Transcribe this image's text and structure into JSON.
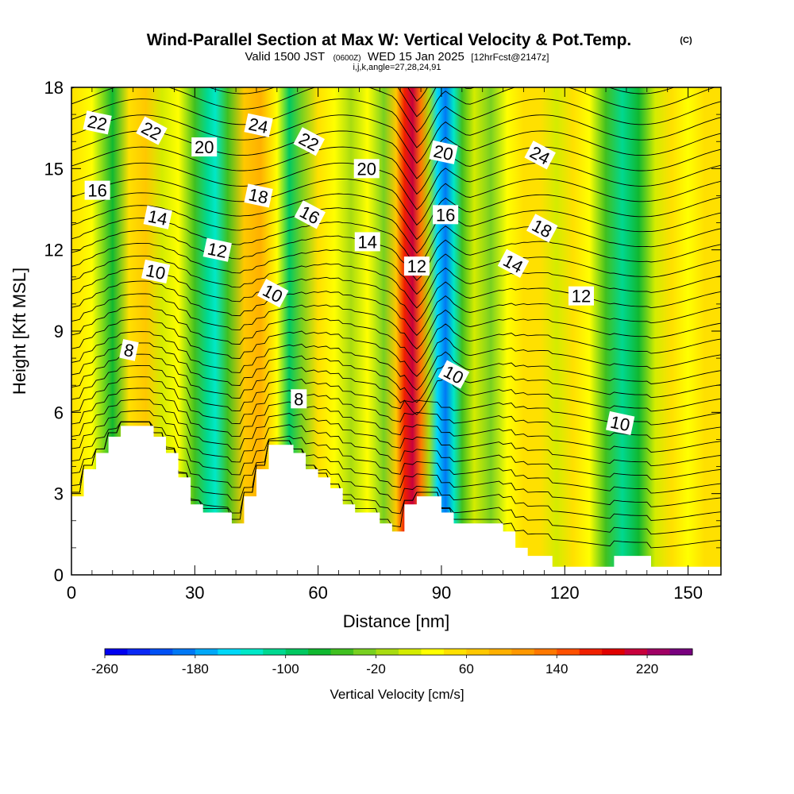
{
  "title": {
    "main": "Wind-Parallel Section at Max W: Vertical Velocity & Pot.Temp.",
    "copyright": "(C)",
    "valid_prefix": "Valid 1500 JST",
    "valid_utc": "(0600Z)",
    "valid_date": "WED 15 Jan 2025",
    "forecast": "[12hrFcst@2147z]",
    "indices": "i,j,k,angle=27,28,24,91"
  },
  "chart_data": {
    "type": "heatmap",
    "xlabel": "Distance [nm]",
    "ylabel": "Height [Kft MSL]",
    "xlim": [
      0,
      158
    ],
    "ylim": [
      0,
      18
    ],
    "x_ticks": [
      0,
      30,
      60,
      90,
      120,
      150
    ],
    "y_ticks": [
      0,
      3,
      6,
      9,
      12,
      15,
      18
    ],
    "colorbar": {
      "label": "Vertical Velocity [cm/s]",
      "min": -260,
      "max": 260,
      "step": 20,
      "tick_labels": [
        "-260",
        "-180",
        "-100",
        "-20",
        "60",
        "140",
        "220"
      ],
      "colors": [
        "#0000f0",
        "#0a28f5",
        "#0050f5",
        "#0078f5",
        "#00a8f8",
        "#00d8f8",
        "#00e8c8",
        "#00d890",
        "#00c860",
        "#10b830",
        "#40c020",
        "#78d020",
        "#a8dc10",
        "#d4ec00",
        "#ffff00",
        "#ffe000",
        "#ffc800",
        "#ffb000",
        "#ff9800",
        "#ff7800",
        "#ff5000",
        "#f02000",
        "#e00000",
        "#c8003c",
        "#a00064",
        "#78007e"
      ]
    },
    "velocity_columns": [
      {
        "x": 0,
        "w": 40
      },
      {
        "x": 5,
        "w": 20
      },
      {
        "x": 10,
        "w": -70
      },
      {
        "x": 14,
        "w": 40
      },
      {
        "x": 18,
        "w": 60
      },
      {
        "x": 22,
        "w": 10
      },
      {
        "x": 26,
        "w": 30
      },
      {
        "x": 30,
        "w": -60
      },
      {
        "x": 33,
        "w": -120
      },
      {
        "x": 35,
        "w": -130
      },
      {
        "x": 38,
        "w": -50
      },
      {
        "x": 42,
        "w": 60
      },
      {
        "x": 46,
        "w": 80
      },
      {
        "x": 50,
        "w": 20
      },
      {
        "x": 53,
        "w": -90
      },
      {
        "x": 56,
        "w": -40
      },
      {
        "x": 60,
        "w": 40
      },
      {
        "x": 64,
        "w": 30
      },
      {
        "x": 68,
        "w": -10
      },
      {
        "x": 72,
        "w": 20
      },
      {
        "x": 76,
        "w": -40
      },
      {
        "x": 79,
        "w": 60
      },
      {
        "x": 81,
        "w": 170
      },
      {
        "x": 83,
        "w": 210
      },
      {
        "x": 85,
        "w": 130
      },
      {
        "x": 87,
        "w": -20
      },
      {
        "x": 89,
        "w": -150
      },
      {
        "x": 91,
        "w": -200
      },
      {
        "x": 93,
        "w": -140
      },
      {
        "x": 95,
        "w": -60
      },
      {
        "x": 98,
        "w": 10
      },
      {
        "x": 102,
        "w": -40
      },
      {
        "x": 106,
        "w": 20
      },
      {
        "x": 110,
        "w": 50
      },
      {
        "x": 114,
        "w": 40
      },
      {
        "x": 118,
        "w": 10
      },
      {
        "x": 122,
        "w": 40
      },
      {
        "x": 126,
        "w": 20
      },
      {
        "x": 130,
        "w": -50
      },
      {
        "x": 134,
        "w": -120
      },
      {
        "x": 138,
        "w": -80
      },
      {
        "x": 142,
        "w": 10
      },
      {
        "x": 146,
        "w": 50
      },
      {
        "x": 150,
        "w": 30
      },
      {
        "x": 154,
        "w": 40
      },
      {
        "x": 158,
        "w": 40
      }
    ],
    "terrain": [
      {
        "x": 0,
        "h": 2.9
      },
      {
        "x": 3,
        "h": 3.9
      },
      {
        "x": 6,
        "h": 4.5
      },
      {
        "x": 9,
        "h": 5.1
      },
      {
        "x": 12,
        "h": 5.5
      },
      {
        "x": 18,
        "h": 5.5
      },
      {
        "x": 20,
        "h": 5.1
      },
      {
        "x": 23,
        "h": 4.5
      },
      {
        "x": 26,
        "h": 3.6
      },
      {
        "x": 29,
        "h": 2.6
      },
      {
        "x": 32,
        "h": 2.3
      },
      {
        "x": 36,
        "h": 2.3
      },
      {
        "x": 39,
        "h": 1.9
      },
      {
        "x": 42,
        "h": 2.9
      },
      {
        "x": 45,
        "h": 3.9
      },
      {
        "x": 48,
        "h": 4.8
      },
      {
        "x": 54,
        "h": 4.5
      },
      {
        "x": 57,
        "h": 3.9
      },
      {
        "x": 60,
        "h": 3.6
      },
      {
        "x": 63,
        "h": 3.2
      },
      {
        "x": 66,
        "h": 2.6
      },
      {
        "x": 69,
        "h": 2.3
      },
      {
        "x": 72,
        "h": 2.3
      },
      {
        "x": 75,
        "h": 1.9
      },
      {
        "x": 78,
        "h": 1.6
      },
      {
        "x": 81,
        "h": 2.6
      },
      {
        "x": 84,
        "h": 2.9
      },
      {
        "x": 87,
        "h": 2.9
      },
      {
        "x": 90,
        "h": 2.3
      },
      {
        "x": 93,
        "h": 1.9
      },
      {
        "x": 102,
        "h": 1.9
      },
      {
        "x": 105,
        "h": 1.6
      },
      {
        "x": 108,
        "h": 1.0
      },
      {
        "x": 111,
        "h": 0.7
      },
      {
        "x": 114,
        "h": 0.7
      },
      {
        "x": 117,
        "h": 0.3
      },
      {
        "x": 132,
        "h": 0.7
      },
      {
        "x": 141,
        "h": 0.3
      },
      {
        "x": 158,
        "h": 0.3
      }
    ],
    "isentrope_labels": [
      {
        "text": "22",
        "x": 6.3,
        "y": 16.7
      },
      {
        "text": "22",
        "x": 19.5,
        "y": 16.4
      },
      {
        "text": "20",
        "x": 32.3,
        "y": 15.8
      },
      {
        "text": "24",
        "x": 45.5,
        "y": 16.6
      },
      {
        "text": "22",
        "x": 57.8,
        "y": 16.0
      },
      {
        "text": "20",
        "x": 71.8,
        "y": 15.0
      },
      {
        "text": "20",
        "x": 90.5,
        "y": 15.6
      },
      {
        "text": "24",
        "x": 114.0,
        "y": 15.5
      },
      {
        "text": "16",
        "x": 6.3,
        "y": 14.2
      },
      {
        "text": "18",
        "x": 45.5,
        "y": 14.0
      },
      {
        "text": "16",
        "x": 58.0,
        "y": 13.3
      },
      {
        "text": "16",
        "x": 91.0,
        "y": 13.3
      },
      {
        "text": "14",
        "x": 21.0,
        "y": 13.2
      },
      {
        "text": "18",
        "x": 114.5,
        "y": 12.8
      },
      {
        "text": "14",
        "x": 72.0,
        "y": 12.3
      },
      {
        "text": "12",
        "x": 35.5,
        "y": 12.0
      },
      {
        "text": "14",
        "x": 107.5,
        "y": 11.5
      },
      {
        "text": "12",
        "x": 84.0,
        "y": 11.4
      },
      {
        "text": "10",
        "x": 20.5,
        "y": 11.2
      },
      {
        "text": "10",
        "x": 49.0,
        "y": 10.4
      },
      {
        "text": "12",
        "x": 124.0,
        "y": 10.3
      },
      {
        "text": "8",
        "x": 14.0,
        "y": 8.3
      },
      {
        "text": "10",
        "x": 93.0,
        "y": 7.4
      },
      {
        "text": "8",
        "x": 55.3,
        "y": 6.5
      },
      {
        "text": "10",
        "x": 133.5,
        "y": 5.6
      }
    ]
  }
}
